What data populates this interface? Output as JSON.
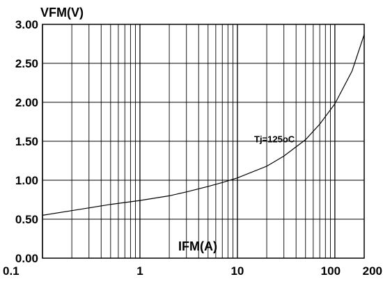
{
  "chart_data": {
    "type": "line",
    "title": "",
    "ylabel": "VFM(V)",
    "xlabel": "IFM(A)",
    "xscale": "log",
    "xlim": [
      0.1,
      200
    ],
    "ylim": [
      0,
      3
    ],
    "grid": true,
    "x_tick_labels": [
      {
        "value": 0.1,
        "label": "0.1"
      },
      {
        "value": 1,
        "label": "1"
      },
      {
        "value": 10,
        "label": "10"
      },
      {
        "value": 100,
        "label": "100"
      },
      {
        "value": 200,
        "label": "200"
      }
    ],
    "y_tick_labels": [
      {
        "value": 0,
        "label": "0.00"
      },
      {
        "value": 0.5,
        "label": "0.50"
      },
      {
        "value": 1.0,
        "label": "1.00"
      },
      {
        "value": 1.5,
        "label": "1.50"
      },
      {
        "value": 2.0,
        "label": "2.00"
      },
      {
        "value": 2.5,
        "label": "2.50"
      },
      {
        "value": 3.0,
        "label": "3.00"
      }
    ],
    "series": [
      {
        "name": "Tj=125oC",
        "x": [
          0.1,
          0.2,
          0.5,
          1,
          2,
          3,
          5,
          7,
          10,
          20,
          30,
          50,
          70,
          100,
          150,
          200
        ],
        "y": [
          0.55,
          0.61,
          0.69,
          0.74,
          0.8,
          0.85,
          0.92,
          0.97,
          1.03,
          1.18,
          1.31,
          1.52,
          1.72,
          1.98,
          2.4,
          2.87
        ]
      }
    ],
    "annotations": [
      {
        "text": "Tj=125oC",
        "x": 40,
        "y": 1.53
      }
    ]
  }
}
